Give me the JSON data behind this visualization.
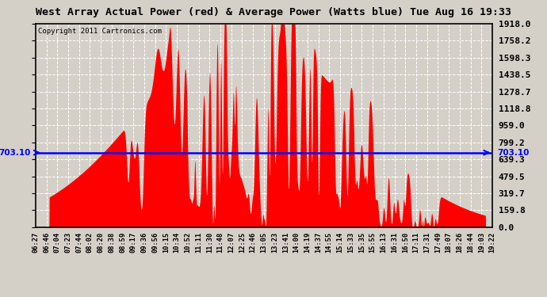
{
  "title": "West Array Actual Power (red) & Average Power (Watts blue) Tue Aug 16 19:33",
  "copyright": "Copyright 2011 Cartronics.com",
  "avg_power": 703.1,
  "y_max": 1918.0,
  "y_min": 0.0,
  "y_ticks": [
    0.0,
    159.8,
    319.7,
    479.5,
    639.3,
    799.2,
    959.0,
    1118.8,
    1278.7,
    1438.5,
    1598.3,
    1758.2,
    1918.0
  ],
  "bg_color": "#d4d0c8",
  "plot_bg_color": "#d4d0c8",
  "bar_color": "#ff0000",
  "line_color": "#0000ff",
  "x_labels": [
    "06:27",
    "06:46",
    "07:04",
    "07:23",
    "07:44",
    "08:02",
    "08:20",
    "08:38",
    "08:59",
    "09:17",
    "09:36",
    "09:56",
    "10:15",
    "10:34",
    "10:52",
    "11:11",
    "11:30",
    "11:48",
    "12:07",
    "12:25",
    "12:46",
    "13:05",
    "13:23",
    "13:41",
    "14:00",
    "14:19",
    "14:37",
    "14:55",
    "15:14",
    "15:33",
    "15:35",
    "15:55",
    "16:13",
    "16:31",
    "16:50",
    "17:11",
    "17:31",
    "17:49",
    "18:07",
    "18:26",
    "18:44",
    "19:03",
    "19:22"
  ]
}
